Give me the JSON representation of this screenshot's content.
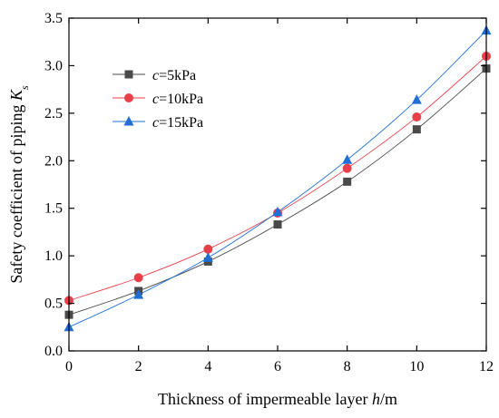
{
  "chart_data": {
    "type": "line",
    "xlabel_parts": [
      "Thickness of impermeable layer ",
      "h",
      "/m"
    ],
    "ylabel_parts": [
      "Safety coefficient of piping ",
      "K",
      "s"
    ],
    "x": [
      0,
      2,
      4,
      6,
      8,
      10,
      12
    ],
    "xlim": [
      0,
      12
    ],
    "ylim": [
      0,
      3.5
    ],
    "x_ticks": [
      "0",
      "2",
      "4",
      "6",
      "8",
      "10",
      "12"
    ],
    "y_ticks": [
      "0.0",
      "0.5",
      "1.0",
      "1.5",
      "2.0",
      "2.5",
      "3.0",
      "3.5"
    ],
    "grid": false,
    "legend_position": "upper-left",
    "series": [
      {
        "name_parts": [
          "c",
          "=5kPa"
        ],
        "marker": "square",
        "color": "#4a4a4a",
        "values": [
          0.38,
          0.63,
          0.94,
          1.33,
          1.78,
          2.33,
          2.97
        ]
      },
      {
        "name_parts": [
          "c",
          "=10kPa"
        ],
        "marker": "circle",
        "color": "#e8404a",
        "values": [
          0.53,
          0.77,
          1.07,
          1.45,
          1.92,
          2.46,
          3.1
        ]
      },
      {
        "name_parts": [
          "c",
          "=15kPa"
        ],
        "marker": "triangle",
        "color": "#1f6fd6",
        "values": [
          0.25,
          0.59,
          0.98,
          1.46,
          2.01,
          2.64,
          3.37
        ]
      }
    ]
  }
}
